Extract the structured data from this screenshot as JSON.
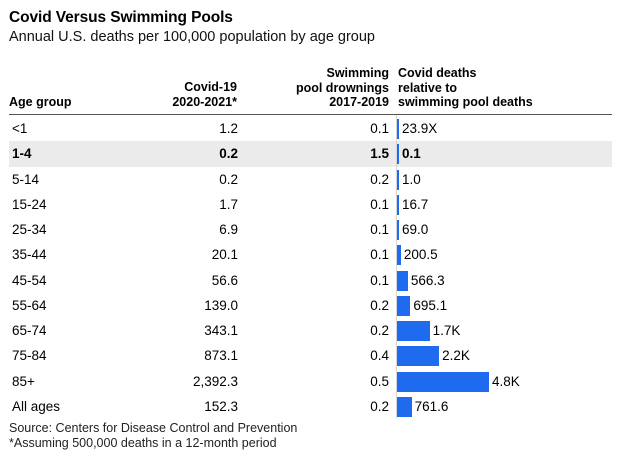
{
  "title": "Covid Versus Swimming Pools",
  "subtitle": "Annual U.S. deaths per 100,000 population by age group",
  "headers": {
    "age_group": "Age group",
    "covid_line1": "Covid-19",
    "covid_line2": "2020-2021*",
    "pool_line1": "Swimming",
    "pool_line2": "pool drownings",
    "pool_line3": "2017-2019",
    "ratio_line1": "Covid deaths",
    "ratio_line2": "relative to",
    "ratio_line3": "swimming pool deaths"
  },
  "bar_color": "#1f6bf0",
  "highlight_color": "#ebebeb",
  "chart_data": {
    "type": "table",
    "columns": [
      "Age group",
      "Covid-19 2020-2021*",
      "Swimming pool drownings 2017-2019",
      "Covid deaths relative to swimming pool deaths"
    ],
    "rows": [
      {
        "age": "<1",
        "covid": "1.2",
        "pool": "0.1",
        "ratio": 23.9,
        "ratio_label": "23.9X",
        "highlight": false
      },
      {
        "age": "1-4",
        "covid": "0.2",
        "pool": "1.5",
        "ratio": 0.1,
        "ratio_label": "0.1",
        "highlight": true
      },
      {
        "age": "5-14",
        "covid": "0.2",
        "pool": "0.2",
        "ratio": 1.0,
        "ratio_label": "1.0",
        "highlight": false
      },
      {
        "age": "15-24",
        "covid": "1.7",
        "pool": "0.1",
        "ratio": 16.7,
        "ratio_label": "16.7",
        "highlight": false
      },
      {
        "age": "25-34",
        "covid": "6.9",
        "pool": "0.1",
        "ratio": 69.0,
        "ratio_label": "69.0",
        "highlight": false
      },
      {
        "age": "35-44",
        "covid": "20.1",
        "pool": "0.1",
        "ratio": 200.5,
        "ratio_label": "200.5",
        "highlight": false
      },
      {
        "age": "45-54",
        "covid": "56.6",
        "pool": "0.1",
        "ratio": 566.3,
        "ratio_label": "566.3",
        "highlight": false
      },
      {
        "age": "55-64",
        "covid": "139.0",
        "pool": "0.2",
        "ratio": 695.1,
        "ratio_label": "695.1",
        "highlight": false
      },
      {
        "age": "65-74",
        "covid": "343.1",
        "pool": "0.2",
        "ratio": 1700,
        "ratio_label": "1.7K",
        "highlight": false
      },
      {
        "age": "75-84",
        "covid": "873.1",
        "pool": "0.4",
        "ratio": 2200,
        "ratio_label": "2.2K",
        "highlight": false
      },
      {
        "age": "85+",
        "covid": "2,392.3",
        "pool": "0.5",
        "ratio": 4800,
        "ratio_label": "4.8K",
        "highlight": false
      },
      {
        "age": "All ages",
        "covid": "152.3",
        "pool": "0.2",
        "ratio": 761.6,
        "ratio_label": "761.6",
        "highlight": false
      }
    ]
  },
  "source": "Source: Centers for Disease Control and Prevention",
  "footnote": "*Assuming 500,000 deaths in a 12-month period"
}
